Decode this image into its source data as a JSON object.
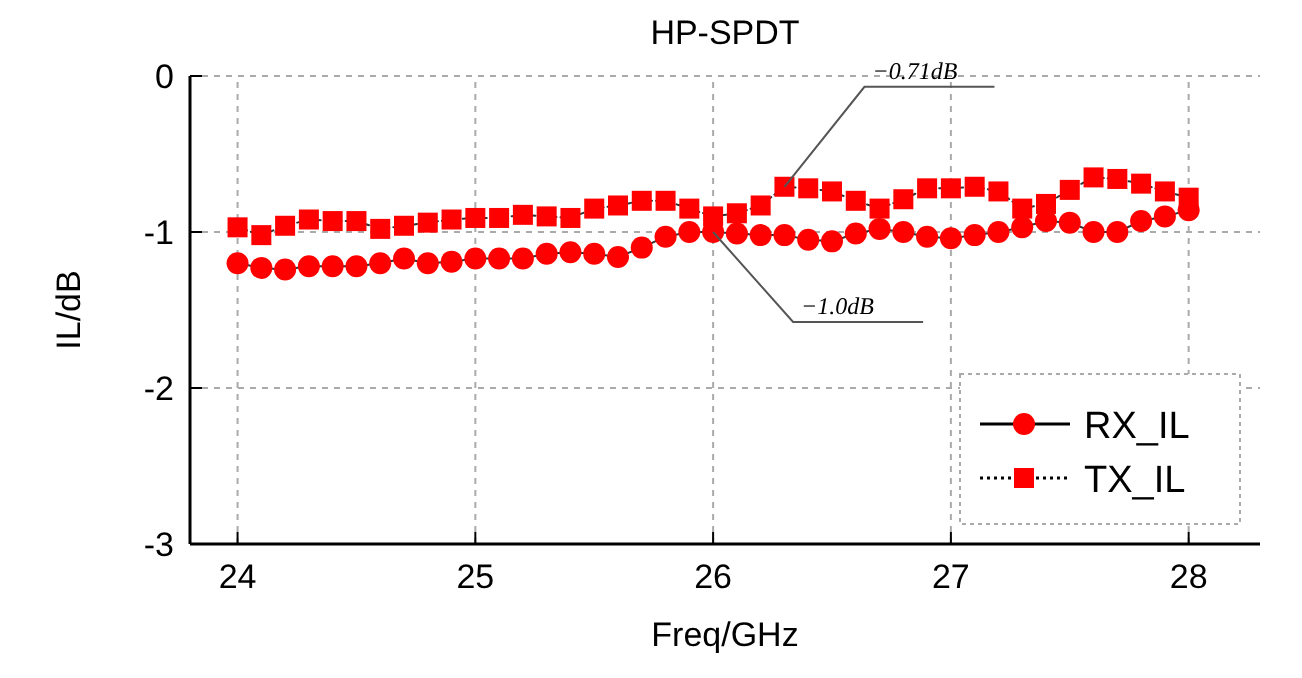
{
  "chart_data": {
    "type": "line",
    "title": "HP-SPDT",
    "xlabel": "Freq/GHz",
    "ylabel": "IL/dB",
    "x": [
      24.0,
      24.1,
      24.2,
      24.3,
      24.4,
      24.5,
      24.6,
      24.7,
      24.8,
      24.9,
      25.0,
      25.1,
      25.2,
      25.3,
      25.4,
      25.5,
      25.6,
      25.7,
      25.8,
      25.9,
      26.0,
      26.1,
      26.2,
      26.3,
      26.4,
      26.5,
      26.6,
      26.7,
      26.8,
      26.9,
      27.0,
      27.1,
      27.2,
      27.3,
      27.4,
      27.5,
      27.6,
      27.7,
      27.8,
      27.9,
      28.0
    ],
    "series": [
      {
        "name": "RX_IL",
        "color": "#ff0000",
        "marker": "circle",
        "line_style": "solid",
        "values": [
          -1.2,
          -1.23,
          -1.24,
          -1.22,
          -1.22,
          -1.22,
          -1.2,
          -1.17,
          -1.2,
          -1.19,
          -1.17,
          -1.17,
          -1.17,
          -1.14,
          -1.13,
          -1.14,
          -1.16,
          -1.1,
          -1.03,
          -1.0,
          -1.0,
          -1.01,
          -1.02,
          -1.02,
          -1.05,
          -1.06,
          -1.01,
          -0.98,
          -1.0,
          -1.03,
          -1.04,
          -1.02,
          -1.0,
          -0.97,
          -0.93,
          -0.94,
          -1.0,
          -1.0,
          -0.93,
          -0.9,
          -0.86
        ]
      },
      {
        "name": "TX_IL",
        "color": "#ff0000",
        "marker": "square",
        "line_style": "dotted",
        "values": [
          -0.97,
          -1.02,
          -0.96,
          -0.92,
          -0.93,
          -0.93,
          -0.98,
          -0.96,
          -0.94,
          -0.92,
          -0.91,
          -0.91,
          -0.89,
          -0.9,
          -0.91,
          -0.85,
          -0.83,
          -0.8,
          -0.8,
          -0.85,
          -0.9,
          -0.88,
          -0.83,
          -0.71,
          -0.72,
          -0.74,
          -0.8,
          -0.85,
          -0.79,
          -0.72,
          -0.72,
          -0.71,
          -0.74,
          -0.85,
          -0.82,
          -0.73,
          -0.65,
          -0.66,
          -0.69,
          -0.74,
          -0.78
        ]
      }
    ],
    "xlim": [
      23.8,
      28.3
    ],
    "xticks": [
      24,
      25,
      26,
      27,
      28
    ],
    "ylim": [
      -3,
      0
    ],
    "yticks": [
      -3,
      -2,
      -1,
      0
    ],
    "grid": true,
    "legend": "bottom right",
    "annotations": [
      {
        "text": "−0.71dB",
        "x": 26.3,
        "y": -0.71
      },
      {
        "text": "−1.0dB",
        "x": 26.0,
        "y": -1.0
      }
    ]
  }
}
